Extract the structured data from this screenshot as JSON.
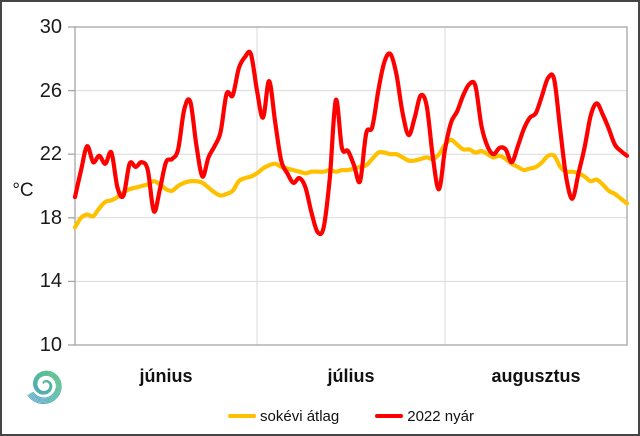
{
  "chart_data": {
    "type": "line",
    "title": "",
    "ylabel": "°C",
    "ylim": [
      10,
      30
    ],
    "y_ticks": [
      10,
      14,
      18,
      22,
      26,
      30
    ],
    "grid": {
      "horizontal": true,
      "vertical_month_boundaries": true
    },
    "legend_position": "bottom-center",
    "x_unit": "day (daily mean temperature, June 1 – August 31)",
    "x_months": [
      {
        "label": "június",
        "days": 30
      },
      {
        "label": "július",
        "days": 31
      },
      {
        "label": "augusztus",
        "days": 31
      }
    ],
    "series": [
      {
        "name": "sokévi átlag",
        "color": "#ffc000",
        "values": [
          17.4,
          18.0,
          18.2,
          18.1,
          18.6,
          19.0,
          19.1,
          19.3,
          19.6,
          19.8,
          19.9,
          20.0,
          20.1,
          20.3,
          20.1,
          19.8,
          19.7,
          20.0,
          20.2,
          20.3,
          20.3,
          20.2,
          19.9,
          19.6,
          19.4,
          19.5,
          19.7,
          20.3,
          20.5,
          20.6,
          20.8,
          21.1,
          21.3,
          21.4,
          21.2,
          21.1,
          21.0,
          20.9,
          20.8,
          20.9,
          20.9,
          20.9,
          21.0,
          20.9,
          21.0,
          21.0,
          21.1,
          21.2,
          21.3,
          21.7,
          22.1,
          22.1,
          22.0,
          22.0,
          21.8,
          21.6,
          21.6,
          21.7,
          21.8,
          21.7,
          22.0,
          22.6,
          22.9,
          22.6,
          22.3,
          22.3,
          22.1,
          22.2,
          22.0,
          21.8,
          21.9,
          21.7,
          21.4,
          21.2,
          21.0,
          21.1,
          21.2,
          21.5,
          21.9,
          21.9,
          21.2,
          20.9,
          20.9,
          20.8,
          20.6,
          20.3,
          20.4,
          20.1,
          19.7,
          19.5,
          19.2,
          18.9
        ]
      },
      {
        "name": "2022 nyár",
        "color": "#ff0000",
        "values": [
          19.3,
          21.0,
          22.5,
          21.5,
          21.9,
          21.4,
          22.1,
          19.9,
          19.4,
          21.4,
          21.2,
          21.5,
          21.0,
          18.4,
          19.8,
          21.5,
          21.7,
          22.3,
          24.8,
          25.3,
          22.6,
          20.6,
          21.8,
          22.5,
          23.4,
          25.8,
          25.7,
          27.4,
          28.1,
          28.3,
          26.0,
          24.3,
          26.6,
          24.0,
          21.6,
          20.8,
          20.2,
          20.5,
          19.9,
          18.3,
          17.1,
          17.4,
          20.5,
          25.4,
          22.4,
          22.2,
          21.3,
          20.3,
          23.3,
          23.7,
          26.0,
          27.8,
          28.3,
          27.0,
          24.6,
          23.2,
          24.3,
          25.7,
          25.0,
          21.8,
          19.8,
          22.3,
          24.0,
          24.7,
          25.7,
          26.4,
          26.3,
          23.8,
          22.5,
          22.0,
          22.4,
          22.3,
          21.5,
          22.5,
          23.6,
          24.3,
          24.6,
          25.7,
          26.8,
          26.7,
          23.5,
          20.5,
          19.2,
          20.8,
          22.4,
          24.4,
          25.2,
          24.5,
          23.6,
          22.6,
          22.2,
          21.9
        ]
      }
    ]
  },
  "logo": {
    "name": "meteorological-spiral-logo",
    "colors": [
      "#4a9bc8",
      "#4fb3a5",
      "#57c27f"
    ]
  },
  "colors": {
    "background": "#ffffff",
    "plot_frame": "#a6a6a6",
    "gridline": "#d9d9d9",
    "border": "#454545"
  }
}
